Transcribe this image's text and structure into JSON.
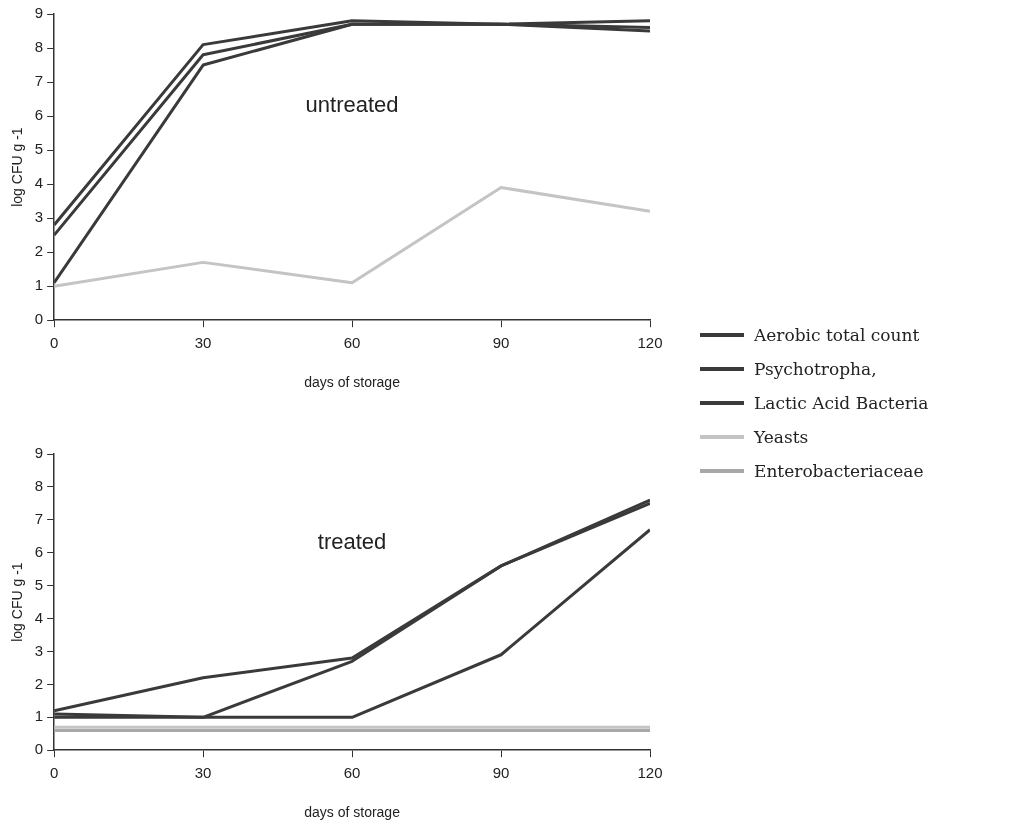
{
  "chart_data": [
    {
      "type": "line",
      "xlabel": "days of storage",
      "ylabel": "log CFU g -1",
      "annotations": [
        "untreated"
      ],
      "x": [
        0,
        30,
        60,
        90,
        120
      ],
      "xlim": [
        0,
        120
      ],
      "xticks": [
        0,
        30,
        60,
        90,
        120
      ],
      "ylim": [
        0,
        9
      ],
      "yticks": [
        0,
        1,
        2,
        3,
        4,
        5,
        6,
        7,
        8,
        9
      ],
      "grid": false,
      "legend": "right",
      "series": [
        {
          "name": "Aerobic total count",
          "color": "#3a3a3a",
          "values": [
            2.8,
            8.1,
            8.8,
            8.7,
            8.8
          ]
        },
        {
          "name": "Psychotropha,",
          "color": "#3a3a3a",
          "values": [
            2.5,
            7.8,
            8.7,
            8.7,
            8.6
          ]
        },
        {
          "name": "Lactic Acid Bacteria",
          "color": "#3a3a3a",
          "values": [
            1.1,
            7.5,
            8.7,
            8.7,
            8.5
          ]
        },
        {
          "name": "Yeasts",
          "color": "#c4c4c4",
          "values": [
            1.0,
            1.7,
            1.1,
            3.9,
            3.2
          ]
        },
        {
          "name": "Enterobacteriaceae",
          "color": "#a8a8a8",
          "values": [
            null,
            null,
            null,
            null,
            null
          ]
        }
      ]
    },
    {
      "type": "line",
      "xlabel": "days of storage",
      "ylabel": "log CFU g -1",
      "annotations": [
        "treated"
      ],
      "x": [
        0,
        30,
        60,
        90,
        120
      ],
      "xlim": [
        0,
        120
      ],
      "xticks": [
        0,
        30,
        60,
        90,
        120
      ],
      "ylim": [
        0,
        9
      ],
      "yticks": [
        0,
        1,
        2,
        3,
        4,
        5,
        6,
        7,
        8,
        9
      ],
      "grid": false,
      "legend": false,
      "series": [
        {
          "color": "#3a3a3a",
          "values": [
            1.2,
            2.2,
            2.8,
            5.6,
            7.6
          ]
        },
        {
          "color": "#3a3a3a",
          "values": [
            1.1,
            1.0,
            2.7,
            5.6,
            7.5
          ]
        },
        {
          "color": "#3a3a3a",
          "values": [
            1.0,
            1.0,
            1.0,
            2.9,
            6.7
          ]
        },
        {
          "color": "#c4c4c4",
          "values": [
            0.7,
            0.7,
            0.7,
            0.7,
            0.7
          ]
        },
        {
          "color": "#a8a8a8",
          "values": [
            0.6,
            0.6,
            0.6,
            0.6,
            0.6
          ]
        }
      ]
    }
  ]
}
